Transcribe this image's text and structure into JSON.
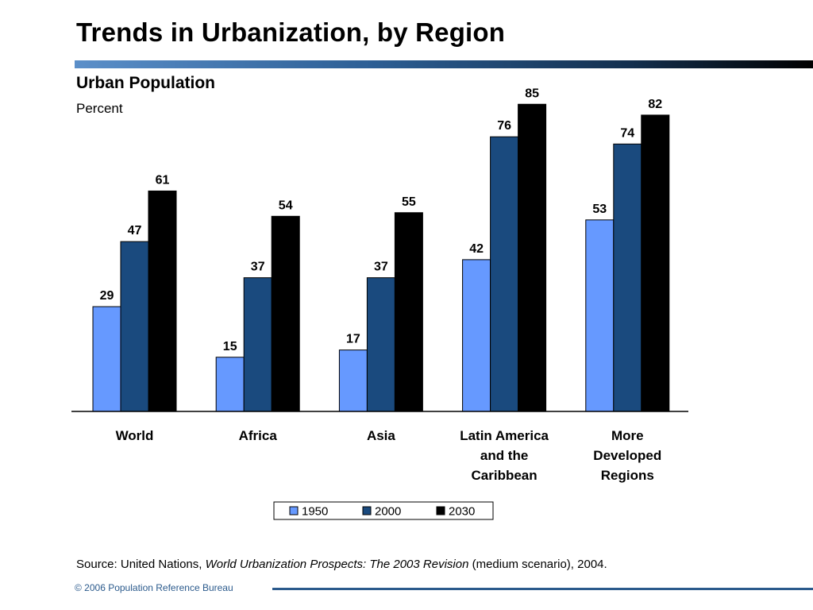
{
  "slide": {
    "title": "Trends in Urbanization, by Region",
    "source_prefix": "Source: United Nations, ",
    "source_italic": "World Urbanization Prospects: The 2003 Revision",
    "source_suffix": " (medium scenario), 2004.",
    "footer": "© 2006 Population Reference Bureau"
  },
  "colors": {
    "series_1950": "#6699ff",
    "series_2000": "#1a4a7e",
    "series_2030": "#000000",
    "title_rule_start": "#5b8fc9",
    "title_rule_end": "#000000",
    "footer": "#2b5a8c"
  },
  "chart_data": {
    "type": "bar",
    "title": "Urban Population",
    "ylabel": "Percent",
    "xlabel": "",
    "ylim": [
      0,
      90
    ],
    "grid": false,
    "legend_position": "bottom-center",
    "categories": [
      [
        "World"
      ],
      [
        "Africa"
      ],
      [
        "Asia"
      ],
      [
        "Latin America",
        "and the",
        "Caribbean"
      ],
      [
        "More",
        "Developed",
        "Regions"
      ]
    ],
    "series": [
      {
        "name": "1950",
        "values": [
          29,
          15,
          17,
          42,
          53
        ]
      },
      {
        "name": "2000",
        "values": [
          47,
          37,
          37,
          76,
          74
        ]
      },
      {
        "name": "2030",
        "values": [
          61,
          54,
          55,
          85,
          82
        ]
      }
    ]
  }
}
